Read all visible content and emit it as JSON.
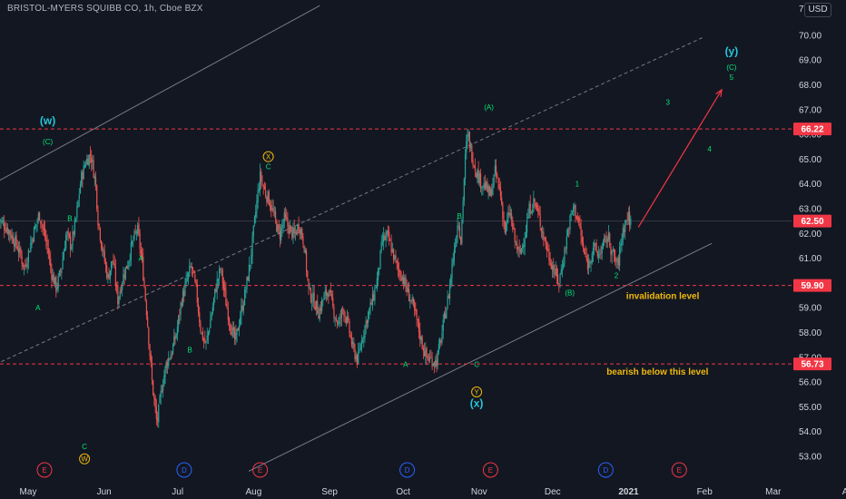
{
  "header": {
    "title": "BRISTOL-MYERS SQUIBB CO, 1h, Cboe BZX",
    "currency": "USD",
    "top_tick": "7"
  },
  "chart_data": {
    "type": "candlestick",
    "symbol": "BRISTOL-MYERS SQUIBB CO",
    "interval": "1h",
    "exchange": "Cboe BZX",
    "y_axis": {
      "range": [
        52.3,
        71.0
      ],
      "ticks": [
        "53.00",
        "54.00",
        "55.00",
        "56.00",
        "57.00",
        "58.00",
        "59.00",
        "60.00",
        "61.00",
        "62.00",
        "63.00",
        "64.00",
        "65.00",
        "66.00",
        "67.00",
        "68.00",
        "69.00",
        "70.00"
      ],
      "tick_values": [
        53,
        54,
        55,
        56,
        57,
        58,
        59,
        60,
        61,
        62,
        63,
        64,
        65,
        66,
        67,
        68,
        69,
        70
      ]
    },
    "x_axis": {
      "labels": [
        "May",
        "Jun",
        "Jul",
        "Aug",
        "Sep",
        "Oct",
        "Nov",
        "Dec",
        "2021",
        "Feb",
        "Mar",
        "Apr"
      ],
      "positions_days": [
        0,
        31,
        61,
        92,
        123,
        153,
        184,
        214,
        245,
        276,
        304,
        335
      ]
    },
    "price_labels": [
      {
        "value": 66.22,
        "text": "66.22",
        "color": "#f23645"
      },
      {
        "value": 62.5,
        "text": "62.50",
        "color": "#f23645"
      },
      {
        "value": 59.9,
        "text": "59.90",
        "color": "#f23645"
      },
      {
        "value": 56.73,
        "text": "56.73",
        "color": "#f23645"
      }
    ],
    "horizontal_levels": [
      66.22,
      59.9,
      56.73
    ],
    "current_price": 62.5,
    "price_path": [
      [
        -12,
        62.6
      ],
      [
        -8,
        62.2
      ],
      [
        -4,
        61.5
      ],
      [
        -1,
        60.6
      ],
      [
        2,
        61.8
      ],
      [
        5,
        62.8
      ],
      [
        8,
        61.6
      ],
      [
        10,
        60.4
      ],
      [
        12,
        59.8
      ],
      [
        14,
        60.6
      ],
      [
        16,
        62.0
      ],
      [
        18,
        61.5
      ],
      [
        20,
        62.6
      ],
      [
        22,
        64.2
      ],
      [
        24,
        64.9
      ],
      [
        26,
        65.2
      ],
      [
        28,
        64.0
      ],
      [
        29,
        62.5
      ],
      [
        31,
        61.2
      ],
      [
        33,
        60.2
      ],
      [
        35,
        61.0
      ],
      [
        37,
        59.3
      ],
      [
        39,
        60.2
      ],
      [
        41,
        60.8
      ],
      [
        43,
        61.6
      ],
      [
        45,
        62.2
      ],
      [
        47,
        60.8
      ],
      [
        49,
        58.6
      ],
      [
        51,
        56.0
      ],
      [
        53,
        54.3
      ],
      [
        55,
        55.8
      ],
      [
        57,
        56.8
      ],
      [
        59,
        57.2
      ],
      [
        61,
        58.0
      ],
      [
        63,
        59.3
      ],
      [
        65,
        60.0
      ],
      [
        67,
        60.7
      ],
      [
        69,
        59.7
      ],
      [
        71,
        58.0
      ],
      [
        73,
        57.5
      ],
      [
        75,
        58.6
      ],
      [
        77,
        59.8
      ],
      [
        79,
        60.6
      ],
      [
        81,
        59.3
      ],
      [
        83,
        58.3
      ],
      [
        85,
        57.6
      ],
      [
        87,
        58.7
      ],
      [
        89,
        59.6
      ],
      [
        91,
        60.8
      ],
      [
        93,
        62.6
      ],
      [
        95,
        64.3
      ],
      [
        97,
        63.7
      ],
      [
        99,
        63.3
      ],
      [
        101,
        62.6
      ],
      [
        103,
        61.9
      ],
      [
        105,
        62.6
      ],
      [
        107,
        62.2
      ],
      [
        109,
        61.9
      ],
      [
        111,
        62.4
      ],
      [
        113,
        61.6
      ],
      [
        115,
        59.6
      ],
      [
        117,
        59.3
      ],
      [
        119,
        58.8
      ],
      [
        121,
        59.4
      ],
      [
        123,
        59.7
      ],
      [
        125,
        58.9
      ],
      [
        127,
        58.3
      ],
      [
        129,
        59.0
      ],
      [
        131,
        58.3
      ],
      [
        133,
        57.3
      ],
      [
        135,
        56.9
      ],
      [
        137,
        57.9
      ],
      [
        139,
        58.7
      ],
      [
        141,
        59.3
      ],
      [
        143,
        60.2
      ],
      [
        145,
        61.7
      ],
      [
        147,
        61.9
      ],
      [
        149,
        61.3
      ],
      [
        151,
        60.6
      ],
      [
        153,
        60.3
      ],
      [
        155,
        59.7
      ],
      [
        157,
        59.2
      ],
      [
        159,
        58.5
      ],
      [
        161,
        57.6
      ],
      [
        163,
        57.0
      ],
      [
        165,
        56.9
      ],
      [
        167,
        56.8
      ],
      [
        169,
        57.8
      ],
      [
        171,
        59.0
      ],
      [
        172,
        59.5
      ],
      [
        174,
        61.2
      ],
      [
        176,
        62.6
      ],
      [
        177,
        61.7
      ],
      [
        178,
        63.6
      ],
      [
        179,
        65.4
      ],
      [
        180,
        66.0
      ],
      [
        181,
        65.4
      ],
      [
        183,
        64.6
      ],
      [
        185,
        64.1
      ],
      [
        187,
        63.9
      ],
      [
        189,
        63.5
      ],
      [
        191,
        64.5
      ],
      [
        193,
        63.7
      ],
      [
        195,
        62.1
      ],
      [
        197,
        62.9
      ],
      [
        199,
        61.7
      ],
      [
        201,
        61.1
      ],
      [
        203,
        61.9
      ],
      [
        205,
        63.0
      ],
      [
        207,
        63.3
      ],
      [
        209,
        62.6
      ],
      [
        211,
        61.8
      ],
      [
        213,
        61.1
      ],
      [
        215,
        60.5
      ],
      [
        217,
        60.0
      ],
      [
        219,
        61.1
      ],
      [
        221,
        62.3
      ],
      [
        223,
        63.1
      ],
      [
        225,
        62.5
      ],
      [
        227,
        61.3
      ],
      [
        229,
        60.7
      ],
      [
        231,
        61.5
      ],
      [
        233,
        61.1
      ],
      [
        235,
        61.5
      ],
      [
        237,
        61.9
      ],
      [
        239,
        61.1
      ],
      [
        241,
        60.7
      ],
      [
        243,
        62.1
      ],
      [
        245,
        62.7
      ],
      [
        246,
        62.5
      ]
    ],
    "trend_channels": [
      {
        "style": "solid",
        "color": "#787b86",
        "from": {
          "x": -18,
          "y": 63.8
        },
        "to": {
          "x": 119,
          "y": 71.2
        }
      },
      {
        "style": "dashed",
        "color": "#787b86",
        "from": {
          "x": -18,
          "y": 56.5
        },
        "to": {
          "x": 275,
          "y": 69.9
        }
      },
      {
        "style": "solid",
        "color": "#787b86",
        "from": {
          "x": 90,
          "y": 52.4
        },
        "to": {
          "x": 279,
          "y": 61.6
        }
      }
    ],
    "projection_arrow": {
      "color": "#f23645",
      "from": {
        "x": 249,
        "y": 62.25
      },
      "to": {
        "x": 283,
        "y": 67.8
      }
    },
    "wave_labels": [
      {
        "text": "(w)",
        "x": 8,
        "y": 66.4,
        "color": "#26c6da",
        "size": "large"
      },
      {
        "text": "(C)",
        "x": 8,
        "y": 65.6,
        "color": "#00e676",
        "size": "small"
      },
      {
        "text": "(B)",
        "x": -14,
        "y": 59.4,
        "color": "#00e676",
        "size": "small"
      },
      {
        "text": "A",
        "x": 4,
        "y": 58.9,
        "color": "#00e676",
        "size": "small"
      },
      {
        "text": "B",
        "x": 17,
        "y": 62.5,
        "color": "#00e676",
        "size": "small"
      },
      {
        "text": "C",
        "x": 23,
        "y": 53.3,
        "color": "#00e676",
        "size": "small"
      },
      {
        "text": "A",
        "x": 46,
        "y": 60.9,
        "color": "#00e676",
        "size": "small"
      },
      {
        "text": "B",
        "x": 66,
        "y": 57.2,
        "color": "#00e676",
        "size": "small"
      },
      {
        "text": "C",
        "x": 98,
        "y": 64.6,
        "color": "#00e676",
        "size": "small"
      },
      {
        "text": "A",
        "x": 154,
        "y": 56.6,
        "color": "#00e676",
        "size": "small"
      },
      {
        "text": "B",
        "x": 176,
        "y": 62.6,
        "color": "#00e676",
        "size": "small"
      },
      {
        "text": "C",
        "x": 183,
        "y": 56.6,
        "color": "#00e676",
        "size": "small"
      },
      {
        "text": "(x)",
        "x": 183,
        "y": 55.0,
        "color": "#26c6da",
        "size": "large"
      },
      {
        "text": "(A)",
        "x": 188,
        "y": 67.0,
        "color": "#00e676",
        "size": "small"
      },
      {
        "text": "(B)",
        "x": 221,
        "y": 59.5,
        "color": "#00e676",
        "size": "small"
      },
      {
        "text": "1",
        "x": 224,
        "y": 63.9,
        "color": "#00e676",
        "size": "small"
      },
      {
        "text": "2",
        "x": 240,
        "y": 60.2,
        "color": "#00e676",
        "size": "small"
      },
      {
        "text": "3",
        "x": 261,
        "y": 67.2,
        "color": "#00e676",
        "size": "small"
      },
      {
        "text": "4",
        "x": 278,
        "y": 65.3,
        "color": "#00e676",
        "size": "small"
      },
      {
        "text": "5",
        "x": 287,
        "y": 68.2,
        "color": "#00e676",
        "size": "small"
      },
      {
        "text": "(C)",
        "x": 287,
        "y": 68.6,
        "color": "#00e676",
        "size": "small"
      },
      {
        "text": "(y)",
        "x": 287,
        "y": 69.2,
        "color": "#26c6da",
        "size": "large"
      }
    ],
    "circled_labels": [
      {
        "text": "W",
        "x": 23,
        "y": 52.9,
        "color": "#f0b90b"
      },
      {
        "text": "X",
        "x": 98,
        "y": 65.1,
        "color": "#f0b90b"
      },
      {
        "text": "Y",
        "x": 183,
        "y": 55.6,
        "color": "#f0b90b"
      }
    ],
    "annotations": [
      {
        "text": "invalidation level",
        "x": 244,
        "y": 59.35,
        "color": "#f0b90b"
      },
      {
        "text": "bearish below this level",
        "x": 236,
        "y": 56.3,
        "color": "#f0b90b"
      }
    ],
    "events": [
      {
        "text": "E",
        "x": 0
      },
      {
        "text": "D",
        "x": 57
      },
      {
        "text": "E",
        "x": 88
      },
      {
        "text": "D",
        "x": 148
      },
      {
        "text": "E",
        "x": 182
      },
      {
        "text": "D",
        "x": 229
      },
      {
        "text": "E",
        "x": 259
      }
    ],
    "colors": {
      "background": "#131722",
      "up": "#26a69a",
      "down": "#ef5350",
      "level": "#f23645",
      "axis_text": "#d1d4dc",
      "grid": "#2a2e39"
    }
  }
}
